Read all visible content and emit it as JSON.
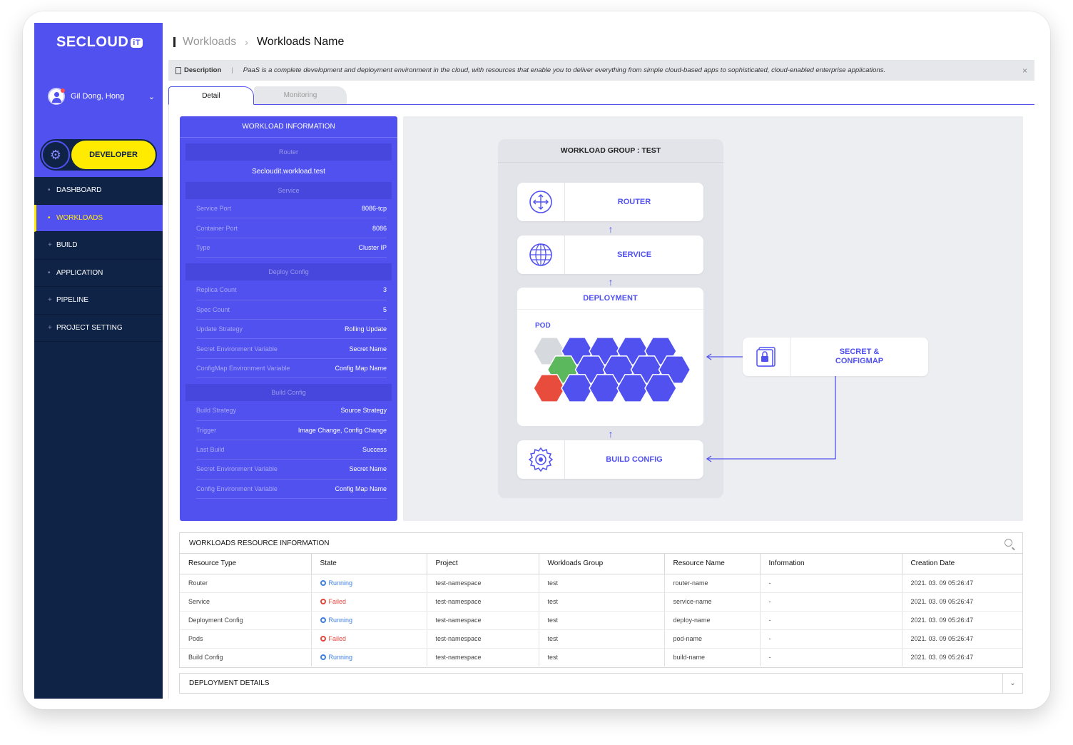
{
  "app": {
    "logo_text": "SECLOUD",
    "logo_badge": "iT",
    "user_name": "Gil Dong, Hong",
    "role_label": "DEVELOPER"
  },
  "nav": {
    "items": [
      {
        "label": "DASHBOARD",
        "marker": "•"
      },
      {
        "label": "WORKLOADS",
        "marker": "•"
      },
      {
        "label": "BUILD",
        "marker": "+"
      },
      {
        "label": "APPLICATION",
        "marker": "•"
      },
      {
        "label": "PIPELINE",
        "marker": "+"
      },
      {
        "label": "PROJECT SETTING",
        "marker": "+"
      }
    ],
    "active_index": 1
  },
  "breadcrumb": {
    "parent": "Workloads",
    "current": "Workloads Name"
  },
  "description": {
    "label": "Description",
    "text": "PaaS is a complete development and deployment environment in the cloud, with resources that enable you to deliver everything from simple cloud-based apps to sophisticated, cloud-enabled enterprise applications."
  },
  "tabs": {
    "detail": "Detail",
    "monitoring": "Monitoring"
  },
  "workload_info": {
    "title": "WORKLOAD INFORMATION",
    "router_header": "Router",
    "router_value": "Secloudit.workload.test",
    "service_header": "Service",
    "service_rows": [
      {
        "k": "Service Port",
        "v": "8086-tcp"
      },
      {
        "k": "Container Port",
        "v": "8086"
      },
      {
        "k": "Type",
        "v": "Cluster IP"
      }
    ],
    "deploy_header": "Deploy Config",
    "deploy_rows": [
      {
        "k": "Replica Count",
        "v": "3"
      },
      {
        "k": "Spec Count",
        "v": "5"
      },
      {
        "k": "Update Strategy",
        "v": "Rolling Update"
      },
      {
        "k": "Secret Environment Variable",
        "v": "Secret Name"
      },
      {
        "k": "ConfigMap Environment Variable",
        "v": "Config Map Name"
      }
    ],
    "build_header": "Build Config",
    "build_rows": [
      {
        "k": "Build Strategy",
        "v": "Source Strategy"
      },
      {
        "k": "Trigger",
        "v": "Image Change, Config Change"
      },
      {
        "k": "Last Build",
        "v": "Success"
      },
      {
        "k": "Secret Environment Variable",
        "v": "Secret Name"
      },
      {
        "k": "Config Environment Variable",
        "v": "Config Map Name"
      }
    ]
  },
  "diagram": {
    "group_title": "WORKLOAD GROUP : TEST",
    "router": "ROUTER",
    "service": "SERVICE",
    "deployment": "DEPLOYMENT",
    "pod": "POD",
    "build_config": "BUILD CONFIG",
    "secret": "SECRET &\nCONFIGMAP",
    "colors": {
      "accent": "#5151f0",
      "pod_idle": "#d6d9de",
      "pod_ok": "#5cb85c",
      "pod_fail": "#e84c3d"
    }
  },
  "resources": {
    "title": "WORKLOADS RESOURCE INFORMATION",
    "columns": [
      "Resource Type",
      "State",
      "Project",
      "Workloads Group",
      "Resource Name",
      "Information",
      "Creation Date"
    ],
    "rows": [
      [
        "Router",
        "Running",
        "test-namespace",
        "test",
        "router-name",
        "-",
        "2021. 03. 09  05:26:47"
      ],
      [
        "Service",
        "Failed",
        "test-namespace",
        "test",
        "service-name",
        "-",
        "2021. 03. 09  05:26:47"
      ],
      [
        "Deployment Config",
        "Running",
        "test-namespace",
        "test",
        "deploy-name",
        "-",
        "2021. 03. 09  05:26:47"
      ],
      [
        "Pods",
        "Failed",
        "test-namespace",
        "test",
        "pod-name",
        "-",
        "2021. 03. 09  05:26:47"
      ],
      [
        "Build Config",
        "Running",
        "test-namespace",
        "test",
        "build-name",
        "-",
        "2021. 03. 09  05:26:47"
      ]
    ]
  },
  "deployment_details": {
    "title": "DEPLOYMENT DETAILS"
  }
}
